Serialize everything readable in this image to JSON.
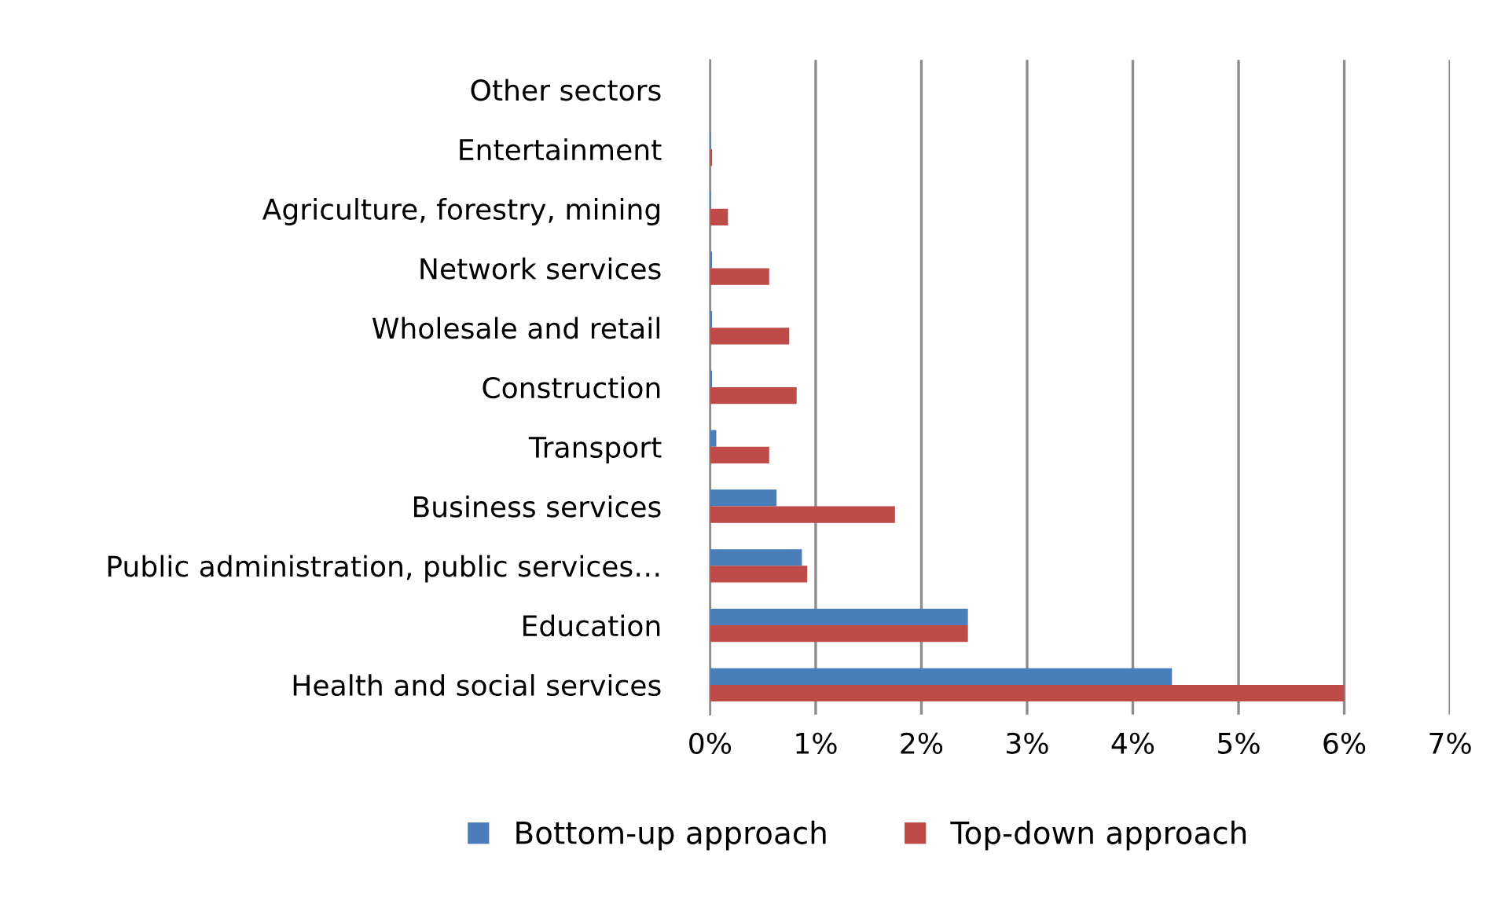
{
  "chart_data": {
    "type": "bar",
    "orientation": "horizontal",
    "categories": [
      "Other sectors",
      "Entertainment",
      "Agriculture, forestry, mining",
      "Network services",
      "Wholesale and retail",
      "Construction",
      "Transport",
      "Business services",
      "Public administration, public services…",
      "Education",
      "Health and social services"
    ],
    "series": [
      {
        "name": "Bottom-up approach",
        "color": "#4a7ebb",
        "values": [
          0,
          0.01,
          0.01,
          0.02,
          0.02,
          0.02,
          0.06,
          0.63,
          0.87,
          2.44,
          4.37
        ]
      },
      {
        "name": "Top-down approach",
        "color": "#be4b48",
        "values": [
          0,
          0.02,
          0.17,
          0.56,
          0.75,
          0.82,
          0.56,
          1.75,
          0.92,
          2.44,
          6.0
        ]
      }
    ],
    "xlim": [
      0,
      7
    ],
    "xticks": [
      {
        "value": 0,
        "label": "0%"
      },
      {
        "value": 1,
        "label": "1%"
      },
      {
        "value": 2,
        "label": "2%"
      },
      {
        "value": 3,
        "label": "3%"
      },
      {
        "value": 4,
        "label": "4%"
      },
      {
        "value": 5,
        "label": "5%"
      },
      {
        "value": 6,
        "label": "6%"
      },
      {
        "value": 7,
        "label": "7%"
      }
    ],
    "grid": "x",
    "legend": "bottom"
  }
}
